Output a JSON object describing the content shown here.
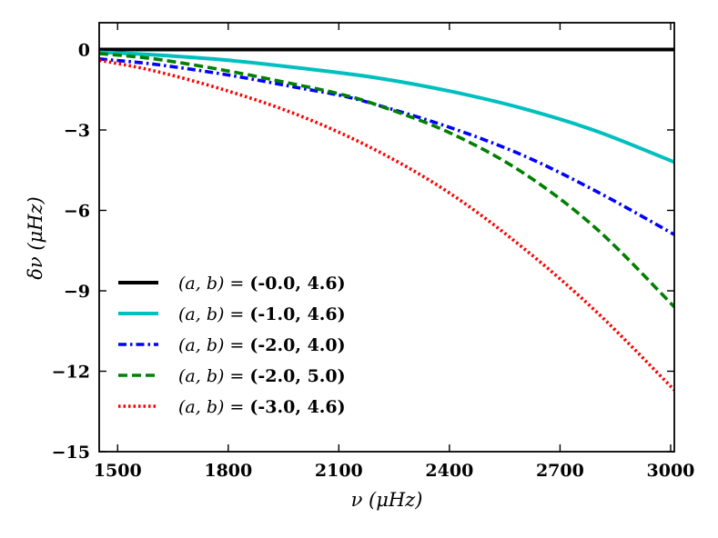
{
  "chart_data": {
    "type": "line",
    "title": "",
    "xlabel": "ν (μHz)",
    "ylabel": "δν (μHz)",
    "xlim": [
      1450,
      3010
    ],
    "ylim": [
      -15,
      1
    ],
    "xticks": [
      1500,
      1800,
      2100,
      2400,
      2700,
      3000
    ],
    "yticks": [
      0,
      -3,
      -6,
      -9,
      -12,
      -15
    ],
    "ytick_labels": [
      "0",
      "−3",
      "−6",
      "−9",
      "−12",
      "−15"
    ],
    "legend_position": "lower-left",
    "legend_prefix": "(a, b) =",
    "series": [
      {
        "name": "(-0.0, 4.6)",
        "color": "#000000",
        "style": "solid",
        "x": [
          1450,
          3010
        ],
        "y": [
          0.0,
          0.0
        ]
      },
      {
        "name": "(-1.0, 4.6)",
        "color": "#00bfbf",
        "style": "solid",
        "x": [
          1450,
          1600,
          1800,
          2000,
          2200,
          2400,
          2600,
          2800,
          3010
        ],
        "y": [
          -0.1,
          -0.2,
          -0.4,
          -0.7,
          -1.05,
          -1.55,
          -2.2,
          -3.05,
          -4.2
        ]
      },
      {
        "name": "(-2.0, 4.0)",
        "color": "#0000ff",
        "style": "dashdot",
        "x": [
          1450,
          1600,
          1800,
          2000,
          2100,
          2200,
          2400,
          2600,
          2800,
          3010
        ],
        "y": [
          -0.35,
          -0.55,
          -0.95,
          -1.45,
          -1.7,
          -2.05,
          -2.9,
          -3.95,
          -5.3,
          -6.9
        ]
      },
      {
        "name": "(-2.0, 5.0)",
        "color": "#008000",
        "style": "dashed",
        "x": [
          1450,
          1600,
          1800,
          2000,
          2100,
          2200,
          2400,
          2600,
          2800,
          3010
        ],
        "y": [
          -0.15,
          -0.35,
          -0.8,
          -1.35,
          -1.65,
          -2.05,
          -3.1,
          -4.6,
          -6.7,
          -9.6
        ]
      },
      {
        "name": "(-3.0, 4.6)",
        "color": "#ff0000",
        "style": "dotted",
        "x": [
          1450,
          1600,
          1800,
          2000,
          2200,
          2400,
          2600,
          2800,
          3010
        ],
        "y": [
          -0.4,
          -0.8,
          -1.55,
          -2.5,
          -3.75,
          -5.35,
          -7.4,
          -9.8,
          -12.7
        ]
      }
    ]
  }
}
